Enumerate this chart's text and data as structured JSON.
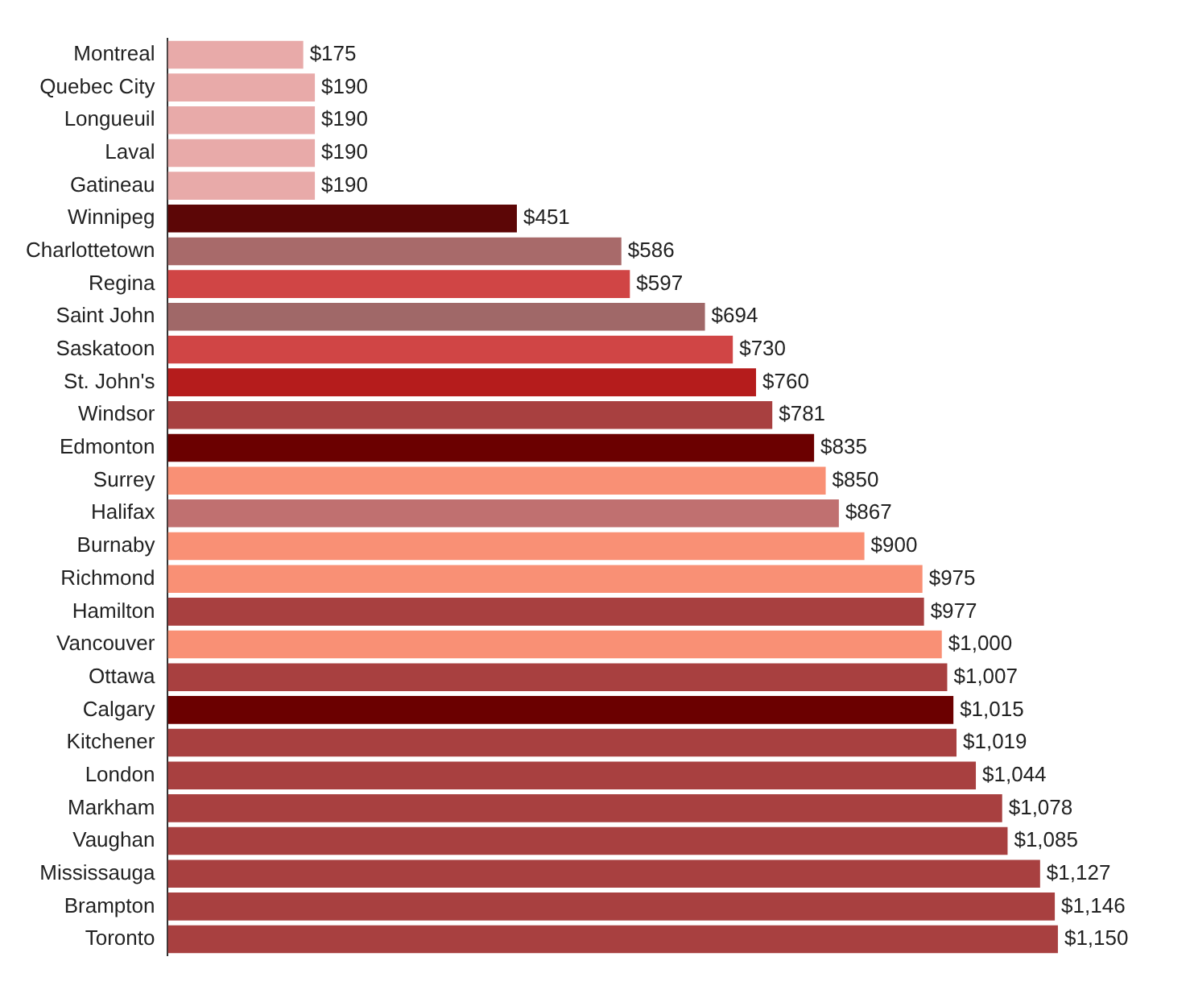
{
  "chart_data": {
    "type": "bar",
    "orientation": "horizontal",
    "categories": [
      "Montreal",
      "Quebec City",
      "Longueuil",
      "Laval",
      "Gatineau",
      "Winnipeg",
      "Charlottetown",
      "Regina",
      "Saint John",
      "Saskatoon",
      "St. John's",
      "Windsor",
      "Edmonton",
      "Surrey",
      "Halifax",
      "Burnaby",
      "Richmond",
      "Hamilton",
      "Vancouver",
      "Ottawa",
      "Calgary",
      "Kitchener",
      "London",
      "Markham",
      "Vaughan",
      "Mississauga",
      "Brampton",
      "Toronto"
    ],
    "values": [
      175,
      190,
      190,
      190,
      190,
      451,
      586,
      597,
      694,
      730,
      760,
      781,
      835,
      850,
      867,
      900,
      975,
      977,
      1000,
      1007,
      1015,
      1019,
      1044,
      1078,
      1085,
      1127,
      1146,
      1150
    ],
    "value_labels": [
      "$175",
      "$190",
      "$190",
      "$190",
      "$190",
      "$451",
      "$586",
      "$597",
      "$694",
      "$730",
      "$760",
      "$781",
      "$835",
      "$850",
      "$867",
      "$900",
      "$975",
      "$977",
      "$1,000",
      "$1,007",
      "$1,015",
      "$1,019",
      "$1,044",
      "$1,078",
      "$1,085",
      "$1,127",
      "$1,146",
      "$1,150"
    ],
    "colors": [
      "#e8aaa9",
      "#e8aaa9",
      "#e8aaa9",
      "#e8aaa9",
      "#e8aaa9",
      "#5c0606",
      "#a86a6a",
      "#d04545",
      "#a06868",
      "#d04545",
      "#b51c1c",
      "#a84040",
      "#6b0000",
      "#f99075",
      "#c07070",
      "#f99075",
      "#f99075",
      "#a84040",
      "#f99075",
      "#a84040",
      "#6b0000",
      "#a84040",
      "#a84040",
      "#a84040",
      "#a84040",
      "#a84040",
      "#a84040",
      "#a84040"
    ],
    "grid": false,
    "legend": false
  }
}
